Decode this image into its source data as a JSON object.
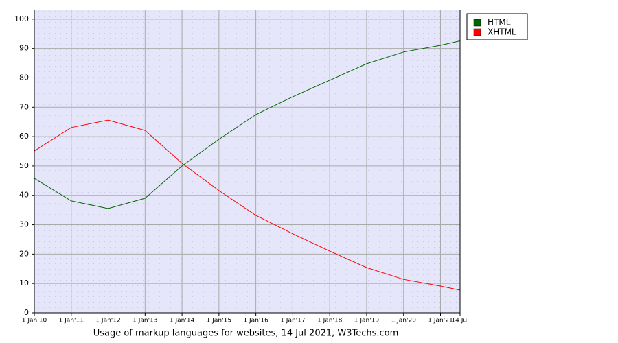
{
  "chart_data": {
    "type": "line",
    "title": "Usage of markup languages for websites, 14 Jul 2021, W3Techs.com",
    "categories": [
      "1 Jan'10",
      "1 Jan'11",
      "1 Jan'12",
      "1 Jan'13",
      "1 Jan'14",
      "1 Jan'15",
      "1 Jan'16",
      "1 Jan'17",
      "1 Jan'18",
      "1 Jan'19",
      "1 Jan'20",
      "1 Jan'21",
      "14 Jul"
    ],
    "series": [
      {
        "name": "HTML",
        "color": "#006400",
        "values": [
          45.8,
          38.1,
          35.5,
          39,
          50,
          59.1,
          67.5,
          73.6,
          79.2,
          84.8,
          88.8,
          91.1,
          92.6
        ]
      },
      {
        "name": "XHTML",
        "color": "#ff0000",
        "values": [
          55.1,
          63.1,
          65.6,
          62.1,
          50.9,
          41.6,
          33.2,
          26.9,
          21,
          15.4,
          11.4,
          9.1,
          7.7
        ]
      }
    ],
    "ylim": [
      0,
      103
    ],
    "yticks": [
      0,
      10,
      20,
      30,
      40,
      50,
      60,
      70,
      80,
      90,
      100
    ],
    "grid": true,
    "legend": "right"
  }
}
